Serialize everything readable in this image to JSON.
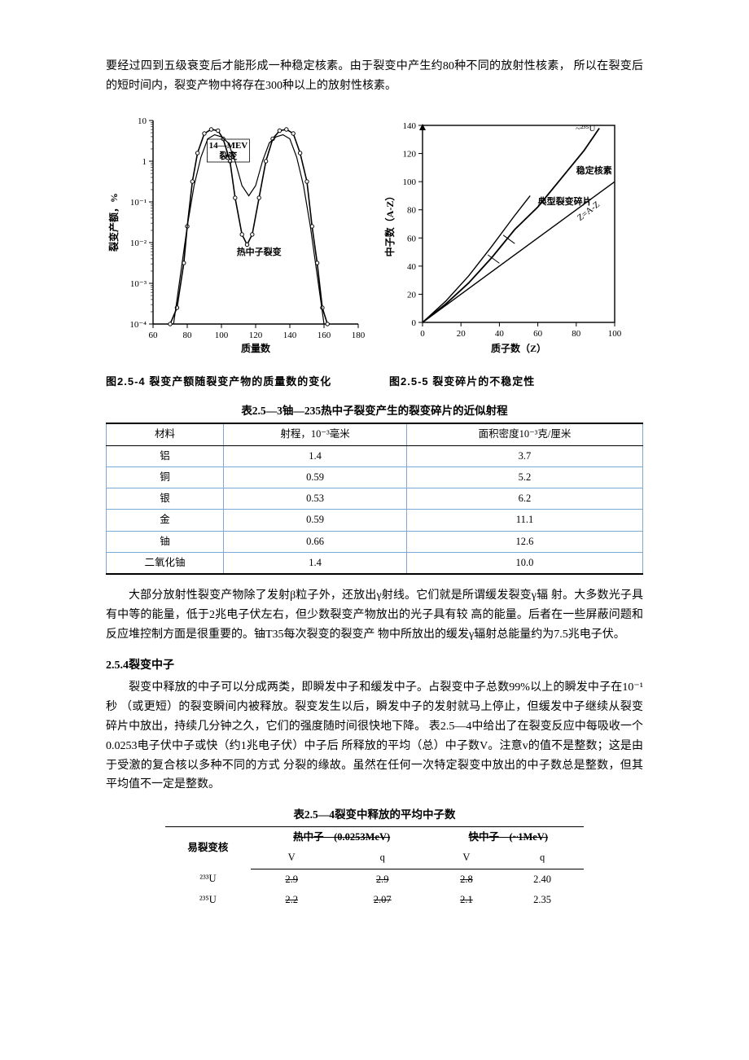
{
  "intro": {
    "p1": "要经过四到五级衰变后才能形成一种稳定核素。由于裂变中产生约80种不同的放射性核素，  所以在裂变后的短时间内，裂变产物中将存在300种以上的放射性核素。"
  },
  "fig_left": {
    "caption": "图2.5-4  裂变产额随裂变产物的质量数的变化",
    "xlabel": "质量数",
    "ylabel": "裂变产额，%",
    "xlim": [
      60,
      180
    ],
    "xticks": [
      60,
      80,
      100,
      120,
      140,
      160,
      180
    ],
    "ylim_exp": [
      -4,
      1
    ],
    "yticks_exp": [
      -4,
      -3,
      -2,
      -1,
      0,
      1
    ],
    "ytick_labels": [
      "10⁻⁴",
      "10⁻³",
      "10⁻²",
      "10⁻¹",
      "1",
      "10"
    ],
    "annot1": {
      "text": "14-MEV\\n裂变",
      "x": 104,
      "y_exp": 0.2
    },
    "annot2": {
      "text": "热中子裂变",
      "x": 122,
      "y_exp": -2.3
    },
    "colors": {
      "axis": "#000",
      "curve": "#000",
      "bg": "#fff"
    },
    "curve_thermal": [
      [
        70,
        -4
      ],
      [
        74,
        -3.6
      ],
      [
        78,
        -2.5
      ],
      [
        80,
        -1.6
      ],
      [
        83,
        -0.5
      ],
      [
        86,
        0.2
      ],
      [
        90,
        0.68
      ],
      [
        94,
        0.78
      ],
      [
        98,
        0.75
      ],
      [
        101,
        0.55
      ],
      [
        105,
        0.0
      ],
      [
        108,
        -0.9
      ],
      [
        112,
        -1.8
      ],
      [
        115,
        -2.05
      ],
      [
        118,
        -1.8
      ],
      [
        122,
        -0.9
      ],
      [
        126,
        0.0
      ],
      [
        130,
        0.55
      ],
      [
        134,
        0.75
      ],
      [
        138,
        0.78
      ],
      [
        142,
        0.68
      ],
      [
        146,
        0.2
      ],
      [
        150,
        -0.5
      ],
      [
        153,
        -1.6
      ],
      [
        156,
        -2.5
      ],
      [
        159,
        -3.6
      ],
      [
        162,
        -4
      ]
    ],
    "curve_14mev": [
      [
        72,
        -4
      ],
      [
        76,
        -2.8
      ],
      [
        80,
        -1.6
      ],
      [
        84,
        -0.6
      ],
      [
        88,
        0.1
      ],
      [
        92,
        0.55
      ],
      [
        96,
        0.65
      ],
      [
        100,
        0.6
      ],
      [
        104,
        0.45
      ],
      [
        108,
        0.0
      ],
      [
        112,
        -0.6
      ],
      [
        116,
        -0.85
      ],
      [
        120,
        -0.6
      ],
      [
        124,
        0.0
      ],
      [
        128,
        0.45
      ],
      [
        132,
        0.6
      ],
      [
        136,
        0.65
      ],
      [
        140,
        0.55
      ],
      [
        144,
        0.1
      ],
      [
        148,
        -0.6
      ],
      [
        152,
        -1.6
      ],
      [
        156,
        -2.8
      ],
      [
        160,
        -4
      ]
    ]
  },
  "fig_right": {
    "caption": "图2.5-5  裂变碎片的不稳定性",
    "xlabel": "质子数（Z）",
    "ylabel": "中子数（A-Z）",
    "xlim": [
      0,
      100
    ],
    "xticks": [
      0,
      20,
      40,
      60,
      80,
      100
    ],
    "ylim": [
      0,
      140
    ],
    "yticks": [
      0,
      20,
      40,
      60,
      80,
      100,
      120,
      140
    ],
    "annot_zaz": "Z=A-Z",
    "annot_u": "~²³⁵U",
    "annot_stable": "稳定核素",
    "annot_frag": "典型裂变碎片",
    "line_zaz": [
      [
        0,
        0
      ],
      [
        100,
        100
      ]
    ],
    "curve_stable": [
      [
        0,
        0
      ],
      [
        12,
        13
      ],
      [
        24,
        28
      ],
      [
        36,
        46
      ],
      [
        48,
        66
      ],
      [
        60,
        82
      ],
      [
        72,
        102
      ],
      [
        84,
        122
      ],
      [
        92,
        138
      ]
    ],
    "curve_frag": [
      [
        0,
        0
      ],
      [
        12,
        15
      ],
      [
        24,
        33
      ],
      [
        36,
        54
      ],
      [
        48,
        76
      ],
      [
        56,
        90
      ]
    ],
    "colors": {
      "axis": "#000",
      "curve": "#000",
      "bg": "#fff"
    }
  },
  "table1": {
    "title": "表2.5—3铀—235热中子裂变产生的裂变碎片的近似射程",
    "columns": [
      "材料",
      "射程，10⁻³毫米",
      "面积密度10⁻³克/厘米"
    ],
    "rows": [
      [
        "铝",
        "1.4",
        "3.7"
      ],
      [
        "铜",
        "0.59",
        "5.2"
      ],
      [
        "银",
        "0.53",
        "6.2"
      ],
      [
        "金",
        "0.59",
        "11.1"
      ],
      [
        "铀",
        "0.66",
        "12.6"
      ],
      [
        "二氧化铀",
        "1.4",
        "10.0"
      ]
    ],
    "border_color": "#7aa9d6"
  },
  "mid": {
    "p1": "大部分放射性裂变产物除了发射β粒子外，还放出γ射线。它们就是所谓缓发裂变γ辐 射。大多数光子具有中等的能量，低于2兆电子伏左右，但少数裂变产物放出的光子具有较 高的能量。后者在一些屏蔽问题和反应堆控制方面是很重要的。铀T35每次裂变的裂变产 物中所放出的缓发γ辐射总能量约为7.5兆电子伏。"
  },
  "sec": {
    "head": "2.5.4裂变中子",
    "p1": "裂变中释放的中子可以分成两类，即瞬发中子和缓发中子。占裂变中子总数99%以上的瞬发中子在10⁻¹秒 （或更短）的裂变瞬间内被释放。裂变发生以后，瞬发中子的发射就马上停止，但缓发中子继续从裂变碎片中放出，持续几分钟之久，它们的强度随时间很快地下降。 表2.5—4中给出了在裂变反应中每吸收一个0.0253电子伏中子或快（约1兆电子伏）中子后 所释放的平均（总）中子数V。注意v的值不是整数；这是由于受激的复合核以多种不同的方式 分裂的缘故。虽然在任何一次特定裂变中放出的中子数总是整数，但其平均值不一定是整数。"
  },
  "table2": {
    "title": "表2.5—4裂变中释放的平均中子数",
    "head1": [
      "易裂变核",
      "热中子",
      "(0.0253MeV)",
      "快中子",
      "(~1MeV)"
    ],
    "head2": [
      "",
      "V",
      "q",
      "V",
      "q"
    ],
    "rows": [
      [
        "²³³U",
        "2.9",
        "2.9",
        "2.8",
        "2.40"
      ],
      [
        "²³⁵U",
        "2.2",
        "2.07",
        "2.1",
        "2.35"
      ]
    ]
  }
}
